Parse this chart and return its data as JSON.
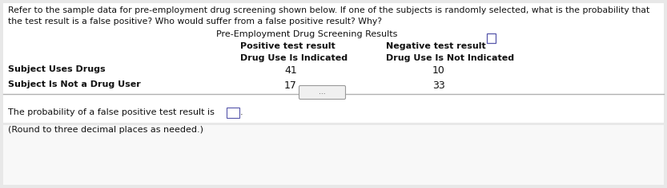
{
  "bg_color": "#e8e8e8",
  "panel_color": "#f5f5f5",
  "intro_line1": "Refer to the sample data for pre-employment drug screening shown below. If one of the subjects is randomly selected, what is the probability that",
  "intro_line2": "the test result is a false positive? Who would suffer from a false positive result? Why?",
  "table_title": "Pre-Employment Drug Screening Results",
  "col1_header1": "Positive test result",
  "col2_header1": "Negative test result",
  "col1_header2": "Drug Use Is Indicated",
  "col2_header2": "Drug Use Is Not Indicated",
  "row1_label": "Subject Uses Drugs",
  "row2_label": "Subject Is Not a Drug User",
  "row1_col1": "41",
  "row1_col2": "10",
  "row2_col1": "17",
  "row2_col2": "33",
  "footer_line1": "The probability of a false positive test result is",
  "footer_line2": "(Round to three decimal places as needed.)",
  "dots_label": "..."
}
